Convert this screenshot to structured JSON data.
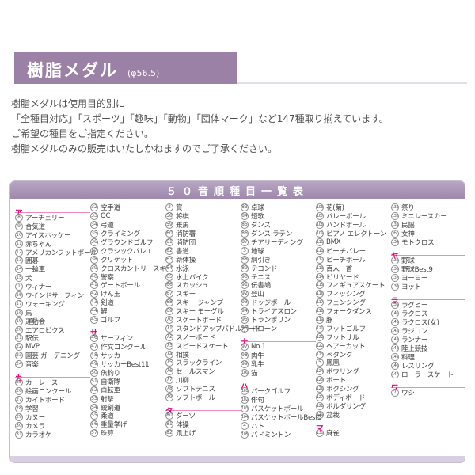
{
  "header": {
    "title": "樹脂メダル",
    "diameter_note": "(φ56.5)"
  },
  "intro": {
    "line1": "樹脂メダルは使用目的別に",
    "line2": "「全種目対応」「スポーツ」「趣味」「動物」「団体マーク」など147種取り揃えています。",
    "line3": "ご希望の種目をご指定ください。",
    "line4": "樹脂メダルのみの販売はいたしかねますのでご了承ください。"
  },
  "table": {
    "title": "５０音順種目一覧表",
    "accent_color": "#e4007e",
    "header_color": "#a994b6",
    "columns": [
      [
        {
          "type": "section",
          "label": "ア"
        },
        {
          "type": "item",
          "num": "8",
          "label": "アーチェリー"
        },
        {
          "type": "item",
          "num": "9",
          "label": "合気道"
        },
        {
          "type": "item",
          "num": "10",
          "label": "アイスホッケー"
        },
        {
          "type": "item",
          "num": "11",
          "label": "赤ちゃん"
        },
        {
          "type": "item",
          "num": "12",
          "label": "アメリカンフットボール"
        },
        {
          "type": "item",
          "num": "13",
          "label": "囲碁"
        },
        {
          "type": "item",
          "num": "14",
          "label": "一輪車"
        },
        {
          "type": "item",
          "num": "15",
          "label": "犬"
        },
        {
          "type": "item",
          "num": "1",
          "label": "ウィナー"
        },
        {
          "type": "item",
          "num": "16",
          "label": "ウインドサーフィン"
        },
        {
          "type": "item",
          "num": "17",
          "label": "ウォーキング"
        },
        {
          "type": "item",
          "num": "18",
          "label": "馬"
        },
        {
          "type": "item",
          "num": "19",
          "label": "運動会"
        },
        {
          "type": "item",
          "num": "20",
          "label": "エアロビクス"
        },
        {
          "type": "item",
          "num": "21",
          "label": "駅伝"
        },
        {
          "type": "item",
          "num": "22",
          "label": "MVP"
        },
        {
          "type": "item",
          "num": "23",
          "label": "園芸 ガーデニング"
        },
        {
          "type": "item",
          "num": "24",
          "label": "音楽"
        },
        {
          "type": "section",
          "label": "カ"
        },
        {
          "type": "item",
          "num": "25",
          "label": "カーレース"
        },
        {
          "type": "item",
          "num": "26",
          "label": "絵画コンクール"
        },
        {
          "type": "item",
          "num": "27",
          "label": "カイトボード"
        },
        {
          "type": "item",
          "num": "28",
          "label": "学習"
        },
        {
          "type": "item",
          "num": "29",
          "label": "カヌー"
        },
        {
          "type": "item",
          "num": "30",
          "label": "カメラ"
        },
        {
          "type": "item",
          "num": "31",
          "label": "カラオケ"
        }
      ],
      [
        {
          "type": "item",
          "num": "32",
          "label": "空手道"
        },
        {
          "type": "item",
          "num": "33",
          "label": "QC"
        },
        {
          "type": "item",
          "num": "34",
          "label": "弓道"
        },
        {
          "type": "item",
          "num": "35",
          "label": "クライミング"
        },
        {
          "type": "item",
          "num": "36",
          "label": "グラウンドゴルフ"
        },
        {
          "type": "item",
          "num": "37",
          "label": "クラシックバレエ"
        },
        {
          "type": "item",
          "num": "38",
          "label": "クリケット"
        },
        {
          "type": "item",
          "num": "39",
          "label": "クロスカントリースキー"
        },
        {
          "type": "item",
          "num": "40",
          "label": "警察"
        },
        {
          "type": "item",
          "num": "41",
          "label": "ゲートボール"
        },
        {
          "type": "item",
          "num": "42",
          "label": "けん玉"
        },
        {
          "type": "item",
          "num": "43",
          "label": "剣道"
        },
        {
          "type": "item",
          "num": "44",
          "label": "鯉"
        },
        {
          "type": "item",
          "num": "45",
          "label": "ゴルフ"
        },
        {
          "type": "section",
          "label": "サ"
        },
        {
          "type": "item",
          "num": "46",
          "label": "サーフィン"
        },
        {
          "type": "item",
          "num": "47",
          "label": "作文コンクール"
        },
        {
          "type": "item",
          "num": "48",
          "label": "サッカー"
        },
        {
          "type": "item",
          "num": "49",
          "label": "サッカーBest11"
        },
        {
          "type": "item",
          "num": "50",
          "label": "魚釣り"
        },
        {
          "type": "item",
          "num": "51",
          "label": "自衛隊"
        },
        {
          "type": "item",
          "num": "52",
          "label": "自転車"
        },
        {
          "type": "item",
          "num": "53",
          "label": "射撃"
        },
        {
          "type": "item",
          "num": "54",
          "label": "銃剣道"
        },
        {
          "type": "item",
          "num": "55",
          "label": "柔道"
        },
        {
          "type": "item",
          "num": "56",
          "label": "重量挙げ"
        },
        {
          "type": "item",
          "num": "57",
          "label": "珠算"
        }
      ],
      [
        {
          "type": "item",
          "num": "2",
          "label": "賞"
        },
        {
          "type": "item",
          "num": "58",
          "label": "将棋"
        },
        {
          "type": "item",
          "num": "59",
          "label": "乗馬"
        },
        {
          "type": "item",
          "num": "60",
          "label": "消防署"
        },
        {
          "type": "item",
          "num": "61",
          "label": "消防団"
        },
        {
          "type": "item",
          "num": "62",
          "label": "書道"
        },
        {
          "type": "item",
          "num": "63",
          "label": "新体操"
        },
        {
          "type": "item",
          "num": "64",
          "label": "水泳"
        },
        {
          "type": "item",
          "num": "65",
          "label": "水上バイク"
        },
        {
          "type": "item",
          "num": "66",
          "label": "スカッシュ"
        },
        {
          "type": "item",
          "num": "67",
          "label": "スキー"
        },
        {
          "type": "item",
          "num": "68",
          "label": "スキー ジャンプ"
        },
        {
          "type": "item",
          "num": "69",
          "label": "スキー モーグル"
        },
        {
          "type": "item",
          "num": "70",
          "label": "スケートボード"
        },
        {
          "type": "item",
          "num": "71",
          "label": "スタンドアップパドルボード"
        },
        {
          "type": "item",
          "num": "72",
          "label": "スノーボード"
        },
        {
          "type": "item",
          "num": "73",
          "label": "スピードスケート"
        },
        {
          "type": "item",
          "num": "74",
          "label": "相撲"
        },
        {
          "type": "item",
          "num": "75",
          "label": "スラックライン"
        },
        {
          "type": "item",
          "num": "76",
          "label": "セールスマン"
        },
        {
          "type": "item",
          "num": "77",
          "label": "川柳"
        },
        {
          "type": "item",
          "num": "78",
          "label": "ソフトテニス"
        },
        {
          "type": "item",
          "num": "79",
          "label": "ソフトボール"
        },
        {
          "type": "section",
          "label": "タ"
        },
        {
          "type": "item",
          "num": "80",
          "label": "ダーツ"
        },
        {
          "type": "item",
          "num": "81",
          "label": "体操"
        },
        {
          "type": "item",
          "num": "82",
          "label": "凧上げ"
        }
      ],
      [
        {
          "type": "item",
          "num": "83",
          "label": "卓球"
        },
        {
          "type": "item",
          "num": "84",
          "label": "短歌"
        },
        {
          "type": "item",
          "num": "85",
          "label": "ダンス"
        },
        {
          "type": "item",
          "num": "86",
          "label": "ダンス ラテン"
        },
        {
          "type": "item",
          "num": "87",
          "label": "チアリーディング"
        },
        {
          "type": "item",
          "num": "3",
          "label": "地球"
        },
        {
          "type": "item",
          "num": "88",
          "label": "綱引き"
        },
        {
          "type": "item",
          "num": "89",
          "label": "テコンドー"
        },
        {
          "type": "item",
          "num": "90",
          "label": "テニス"
        },
        {
          "type": "item",
          "num": "91",
          "label": "伝書鳩"
        },
        {
          "type": "item",
          "num": "92",
          "label": "登山"
        },
        {
          "type": "item",
          "num": "93",
          "label": "ドッジボール"
        },
        {
          "type": "item",
          "num": "94",
          "label": "トライアスロン"
        },
        {
          "type": "item",
          "num": "95",
          "label": "トランポリン"
        },
        {
          "type": "item",
          "num": "96",
          "label": "ドローン"
        },
        {
          "type": "section",
          "label": "ナ"
        },
        {
          "type": "item",
          "num": "97",
          "label": "No.1"
        },
        {
          "type": "item",
          "num": "98",
          "label": "肉牛"
        },
        {
          "type": "item",
          "num": "99",
          "label": "乳牛"
        },
        {
          "type": "item",
          "num": "100",
          "label": "猫"
        },
        {
          "type": "section",
          "label": "ハ"
        },
        {
          "type": "item",
          "num": "101",
          "label": "パークゴルフ"
        },
        {
          "type": "item",
          "num": "102",
          "label": "俳句"
        },
        {
          "type": "item",
          "num": "103",
          "label": "バスケットボール"
        },
        {
          "type": "item",
          "num": "104",
          "label": "バスケットボールBest5"
        },
        {
          "type": "item",
          "num": "4",
          "label": "ハト"
        },
        {
          "type": "item",
          "num": "105",
          "label": "バドミントン"
        }
      ],
      [
        {
          "type": "item",
          "num": "106",
          "label": "花(菊)"
        },
        {
          "type": "item",
          "num": "107",
          "label": "バレーボール"
        },
        {
          "type": "item",
          "num": "108",
          "label": "ハンドボール"
        },
        {
          "type": "item",
          "num": "109",
          "label": "ピアノ エレクトーン"
        },
        {
          "type": "item",
          "num": "110",
          "label": "BMX"
        },
        {
          "type": "item",
          "num": "111",
          "label": "ビーチバレー"
        },
        {
          "type": "item",
          "num": "112",
          "label": "ビーチボール"
        },
        {
          "type": "item",
          "num": "113",
          "label": "百人一首"
        },
        {
          "type": "item",
          "num": "114",
          "label": "ビリヤード"
        },
        {
          "type": "item",
          "num": "115",
          "label": "フィギュアスケート"
        },
        {
          "type": "item",
          "num": "116",
          "label": "フィッシング"
        },
        {
          "type": "item",
          "num": "117",
          "label": "フェンシング"
        },
        {
          "type": "item",
          "num": "118",
          "label": "フォークダンス"
        },
        {
          "type": "item",
          "num": "119",
          "label": "豚"
        },
        {
          "type": "item",
          "num": "120",
          "label": "フットゴルフ"
        },
        {
          "type": "item",
          "num": "121",
          "label": "フットサル"
        },
        {
          "type": "item",
          "num": "122",
          "label": "ヘアーカット"
        },
        {
          "type": "item",
          "num": "123",
          "label": "ペタンク"
        },
        {
          "type": "item",
          "num": "5",
          "label": "鳳凰"
        },
        {
          "type": "item",
          "num": "124",
          "label": "ボウリング"
        },
        {
          "type": "item",
          "num": "125",
          "label": "ボート"
        },
        {
          "type": "item",
          "num": "126",
          "label": "ボクシング"
        },
        {
          "type": "item",
          "num": "127",
          "label": "ボディボード"
        },
        {
          "type": "item",
          "num": "128",
          "label": "ボルダリング"
        },
        {
          "type": "item",
          "num": "129",
          "label": "盆栽"
        },
        {
          "type": "section",
          "label": "マ"
        },
        {
          "type": "item",
          "num": "130",
          "label": "麻雀"
        }
      ],
      [
        {
          "type": "item",
          "num": "131",
          "label": "祭り"
        },
        {
          "type": "item",
          "num": "132",
          "label": "ミニレースカー"
        },
        {
          "type": "item",
          "num": "133",
          "label": "民謡"
        },
        {
          "type": "item",
          "num": "6",
          "label": "女神"
        },
        {
          "type": "item",
          "num": "134",
          "label": "モトクロス"
        },
        {
          "type": "section",
          "label": "ヤ"
        },
        {
          "type": "item",
          "num": "135",
          "label": "野球"
        },
        {
          "type": "item",
          "num": "136",
          "label": "野球Best9"
        },
        {
          "type": "item",
          "num": "137",
          "label": "ヨーヨー"
        },
        {
          "type": "item",
          "num": "138",
          "label": "ヨット"
        },
        {
          "type": "section",
          "label": "ラ"
        },
        {
          "type": "item",
          "num": "139",
          "label": "ラグビー"
        },
        {
          "type": "item",
          "num": "140",
          "label": "ラクロス"
        },
        {
          "type": "item",
          "num": "141",
          "label": "ラクロス(女)"
        },
        {
          "type": "item",
          "num": "142",
          "label": "ラジコン"
        },
        {
          "type": "item",
          "num": "143",
          "label": "ランナー"
        },
        {
          "type": "item",
          "num": "144",
          "label": "陸上競技"
        },
        {
          "type": "item",
          "num": "145",
          "label": "料理"
        },
        {
          "type": "item",
          "num": "146",
          "label": "レスリング"
        },
        {
          "type": "item",
          "num": "147",
          "label": "ローラースケート"
        },
        {
          "type": "section",
          "label": "ワ"
        },
        {
          "type": "item",
          "num": "7",
          "label": "ワシ"
        }
      ]
    ]
  }
}
